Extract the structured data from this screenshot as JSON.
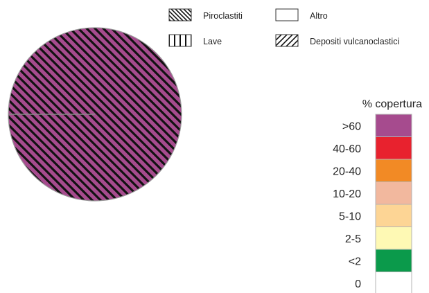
{
  "chart_data": {
    "type": "pie",
    "slices": [
      {
        "label": "Piroclastiti",
        "value": 100,
        "pattern": "diagonal-back",
        "color": "#a64b8e"
      }
    ],
    "pattern_legend": [
      {
        "label": "Piroclastiti",
        "pattern": "diagonal-back"
      },
      {
        "label": "Altro",
        "pattern": "none"
      },
      {
        "label": "Lave",
        "pattern": "vertical"
      },
      {
        "label": "Depositi vulcanoclastici",
        "pattern": "diagonal-forward"
      }
    ],
    "color_scale": {
      "title": "% copertura",
      "classes": [
        {
          "label": ">60",
          "color": "#a64b8e"
        },
        {
          "label": "40-60",
          "color": "#e8222e"
        },
        {
          "label": "20-40",
          "color": "#f28a25"
        },
        {
          "label": "10-20",
          "color": "#f2b89e"
        },
        {
          "label": "5-10",
          "color": "#fdd595"
        },
        {
          "label": "2-5",
          "color": "#fef9b4"
        },
        {
          "label": "<2",
          "color": "#0b9a4b"
        },
        {
          "label": "0",
          "color": "#ffffff"
        }
      ]
    }
  }
}
